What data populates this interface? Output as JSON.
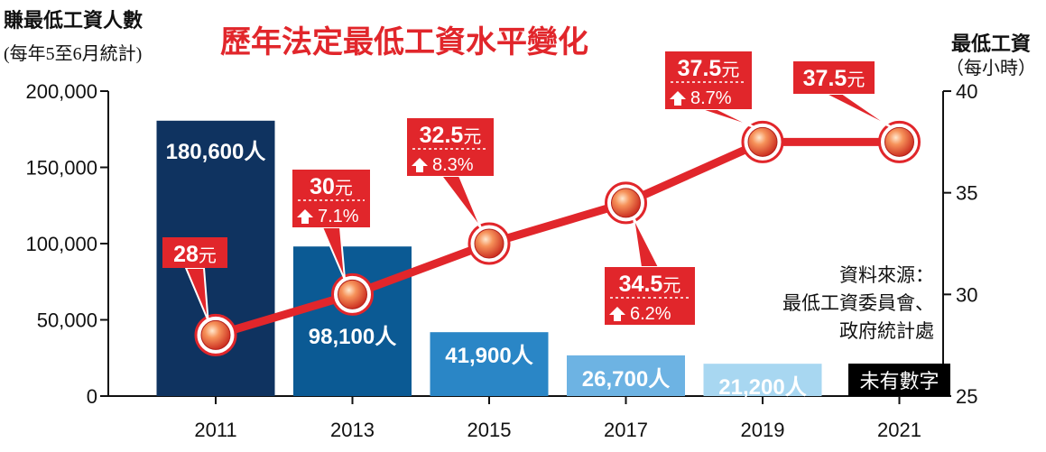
{
  "left_axis_title": "賺最低工資人數",
  "left_axis_subtitle": "(每年5至6月統計)",
  "title": "歷年法定最低工資水平變化",
  "right_axis_title": "最低工資",
  "right_axis_subtitle": "（每小時）",
  "source": [
    "資料來源：",
    "最低工資委員會、",
    "政府統計處"
  ],
  "chart_data": {
    "type": "bar+line",
    "categories": [
      "2011",
      "2013",
      "2015",
      "2017",
      "2019",
      "2021"
    ],
    "left_axis": {
      "ylim": [
        0,
        200000
      ],
      "ticks": [
        "0",
        "50,000",
        "100,000",
        "150,000",
        "200,000"
      ]
    },
    "right_axis": {
      "ylim": [
        25,
        40
      ],
      "ticks": [
        "25",
        "30",
        "35",
        "40"
      ]
    },
    "bars": {
      "values": [
        180600,
        98100,
        41900,
        26700,
        21200,
        null
      ],
      "labels": [
        "180,600人",
        "98,100人",
        "41,900人",
        "26,700人",
        "21,200人",
        "未有數字"
      ],
      "colors": [
        "#0f3360",
        "#0b5a94",
        "#2a86c6",
        "#6db3e3",
        "#a8d7f1",
        "#000000"
      ]
    },
    "line": {
      "values": [
        28,
        30,
        32.5,
        34.5,
        37.5,
        37.5
      ],
      "value_labels": [
        "28元",
        "30元",
        "32.5元",
        "34.5元",
        "37.5元",
        "37.5元"
      ],
      "changes": [
        null,
        "7.1%",
        "8.3%",
        "6.2%",
        "8.7%",
        null
      ],
      "color": "#e1262b"
    }
  }
}
